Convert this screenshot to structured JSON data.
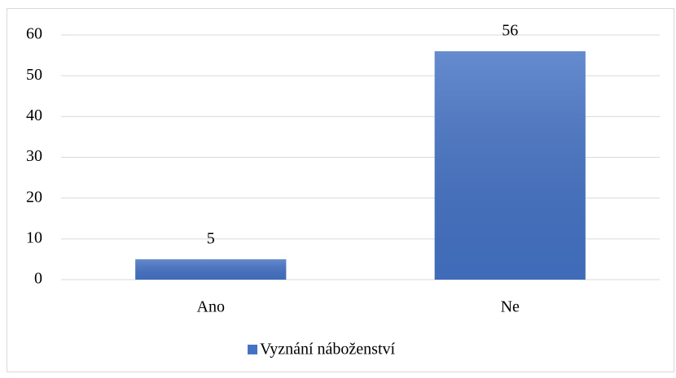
{
  "chart_data": {
    "type": "bar",
    "categories": [
      "Ano",
      "Ne"
    ],
    "series": [
      {
        "name": "Vyznání náboženství",
        "color": "#4472c4",
        "values": [
          5,
          56
        ]
      }
    ],
    "ylim": [
      0,
      60
    ],
    "yticks": [
      0,
      10,
      20,
      30,
      40,
      50,
      60
    ],
    "grid": true,
    "legend": "bottom",
    "data_labels": true
  }
}
